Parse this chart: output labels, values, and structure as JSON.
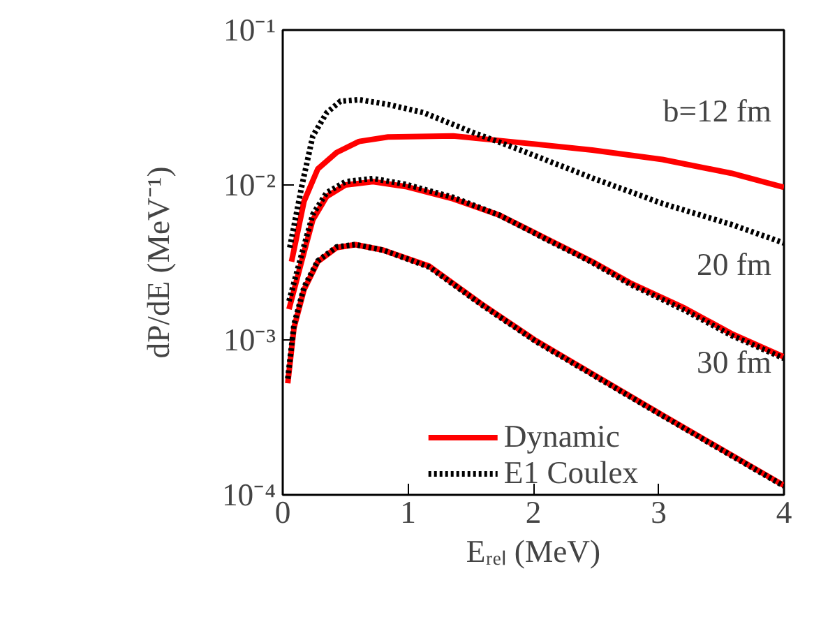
{
  "chart_data": {
    "type": "line",
    "xlabel": "Eᵣₑₗ (MeV)",
    "ylabel": "dP/dE (MeV⁻¹)",
    "xlim": [
      0,
      4
    ],
    "ylim": [
      0.0001,
      0.1
    ],
    "log": "y",
    "xticks": [
      0,
      1,
      2,
      3,
      4
    ],
    "yticks": [
      {
        "value": 0.0001,
        "label": "10⁻⁴"
      },
      {
        "value": 0.001,
        "label": "10⁻³"
      },
      {
        "value": 0.01,
        "label": "10⁻²"
      },
      {
        "value": 0.1,
        "label": "10⁻¹"
      }
    ],
    "grid": false,
    "legend": "bottom",
    "annotations": [
      "b=12 fm",
      "20 fm",
      "30 fm"
    ],
    "series": [
      {
        "name": "Dynamic",
        "color": "#ff0000",
        "line_style": "solid",
        "x": [
          0.07,
          0.17,
          0.28,
          0.43,
          0.61,
          0.84,
          1.36,
          1.8,
          2.47,
          3.03,
          3.58,
          4.0
        ],
        "values": [
          0.0032,
          0.00785,
          0.0127,
          0.0162,
          0.0191,
          0.0204,
          0.0207,
          0.0191,
          0.0168,
          0.0146,
          0.0119,
          0.00966
        ]
      },
      {
        "name": "E1 Coulex",
        "color": "#000000",
        "line_style": "dotted",
        "x": [
          0.056,
          0.15,
          0.24,
          0.35,
          0.46,
          0.61,
          0.84,
          1.13,
          1.5,
          1.88,
          2.47,
          3.03,
          3.58,
          4.0
        ],
        "values": [
          0.00394,
          0.00966,
          0.0207,
          0.0292,
          0.0347,
          0.0355,
          0.0331,
          0.0292,
          0.0221,
          0.017,
          0.0111,
          0.00759,
          0.00556,
          0.00422
        ]
      },
      {
        "color": "#ff0000",
        "line_style": "solid",
        "x": [
          0.05,
          0.15,
          0.24,
          0.35,
          0.5,
          0.72,
          0.98,
          1.36,
          1.73,
          2.1,
          2.47,
          2.77,
          3.21,
          3.58,
          4.0
        ],
        "values": [
          0.00158,
          0.0032,
          0.00596,
          0.00841,
          0.01,
          0.0105,
          0.00977,
          0.00813,
          0.00638,
          0.00452,
          0.0032,
          0.00234,
          0.0016,
          0.0011,
          0.000776
        ]
      },
      {
        "color": "#000000",
        "line_style": "dotted",
        "x": [
          0.05,
          0.15,
          0.24,
          0.35,
          0.5,
          0.72,
          0.98,
          1.36,
          1.73,
          2.1,
          2.47,
          2.77,
          3.21,
          3.58,
          4.0
        ],
        "values": [
          0.00178,
          0.00355,
          0.00646,
          0.00891,
          0.0105,
          0.011,
          0.0101,
          0.00832,
          0.00638,
          0.00447,
          0.00316,
          0.00229,
          0.00155,
          0.00107,
          0.000759
        ]
      },
      {
        "color": "#ff0000",
        "line_style": "solid",
        "x": [
          0.04,
          0.09,
          0.17,
          0.28,
          0.43,
          0.58,
          0.8,
          1.17,
          1.58,
          2.02,
          3.03,
          4.0
        ],
        "values": [
          0.000525,
          0.0012,
          0.00211,
          0.0032,
          0.00394,
          0.00412,
          0.0038,
          0.00299,
          0.00172,
          0.000989,
          0.000327,
          0.000115
        ]
      },
      {
        "color": "#000000",
        "line_style": "dotted",
        "x": [
          0.04,
          0.09,
          0.17,
          0.28,
          0.43,
          0.58,
          0.8,
          1.17,
          1.58,
          2.02,
          3.03,
          4.0
        ],
        "values": [
          0.000562,
          0.00126,
          0.00219,
          0.00324,
          0.00398,
          0.00412,
          0.0038,
          0.00295,
          0.0017,
          0.000977,
          0.000324,
          0.000114
        ]
      }
    ]
  }
}
